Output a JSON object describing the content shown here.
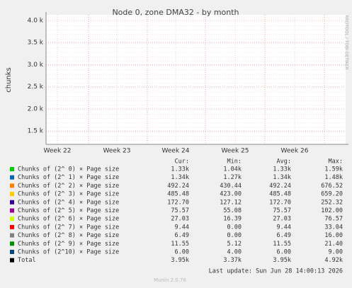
{
  "chart_data": {
    "type": "line",
    "title": "Node 0, zone DMA32 - by month",
    "y_label": "chunks",
    "side_text": "RRDTOOL / TOBI OETIKER",
    "x_labels": [
      "Week 22",
      "Week 23",
      "Week 24",
      "Week 25",
      "Week 26"
    ],
    "ylim": [
      1200,
      4125
    ],
    "yticks": [
      {
        "value": 1500,
        "label": "1.5 k"
      },
      {
        "value": 2000,
        "label": "2.0 k"
      },
      {
        "value": 2500,
        "label": "2.5 k"
      },
      {
        "value": 3000,
        "label": "3.0 k"
      },
      {
        "value": 3500,
        "label": "3.5 k"
      },
      {
        "value": 4000,
        "label": "4.0 k"
      }
    ],
    "grid": true,
    "legend_headers": [
      "Cur:",
      "Min:",
      "Avg:",
      "Max:"
    ],
    "series": [
      {
        "name": "Chunks of (2^ 0) × Page size",
        "color": "#00cc00",
        "stats": [
          "1.33k",
          "1.04k",
          "1.33k",
          "1.59k"
        ]
      },
      {
        "name": "Chunks of (2^ 1) × Page size",
        "color": "#0066b3",
        "stats": [
          "1.34k",
          "1.27k",
          "1.34k",
          "1.48k"
        ]
      },
      {
        "name": "Chunks of (2^ 2) × Page size",
        "color": "#ff8000",
        "stats": [
          "492.24",
          "430.44",
          "492.24",
          "676.52"
        ]
      },
      {
        "name": "Chunks of (2^ 3) × Page size",
        "color": "#ffcc00",
        "stats": [
          "485.48",
          "423.00",
          "485.48",
          "659.20"
        ]
      },
      {
        "name": "Chunks of (2^ 4) × Page size",
        "color": "#330099",
        "stats": [
          "172.70",
          "127.12",
          "172.70",
          "252.32"
        ]
      },
      {
        "name": "Chunks of (2^ 5) × Page size",
        "color": "#990099",
        "stats": [
          "75.57",
          "55.08",
          "75.57",
          "102.00"
        ]
      },
      {
        "name": "Chunks of (2^ 6) × Page size",
        "color": "#ccff00",
        "stats": [
          "27.03",
          "16.39",
          "27.03",
          "76.57"
        ]
      },
      {
        "name": "Chunks of (2^ 7) × Page size",
        "color": "#ff0000",
        "stats": [
          "9.44",
          "0.00",
          "9.44",
          "33.04"
        ]
      },
      {
        "name": "Chunks of (2^ 8) × Page size",
        "color": "#808080",
        "stats": [
          "6.49",
          "0.00",
          "6.49",
          "16.00"
        ]
      },
      {
        "name": "Chunks of (2^ 9) × Page size",
        "color": "#008f00",
        "stats": [
          "11.55",
          "5.12",
          "11.55",
          "21.40"
        ]
      },
      {
        "name": "Chunks of (2^10) × Page size",
        "color": "#00487d",
        "stats": [
          "6.00",
          "4.00",
          "6.00",
          "9.00"
        ]
      },
      {
        "name": "Total",
        "color": "#000000",
        "stats": [
          "3.95k",
          "3.37k",
          "3.95k",
          "4.92k"
        ]
      }
    ],
    "last_update": "Last update: Sun Jun 28 14:00:13 2026",
    "footer": "Munin 2.0.76"
  }
}
